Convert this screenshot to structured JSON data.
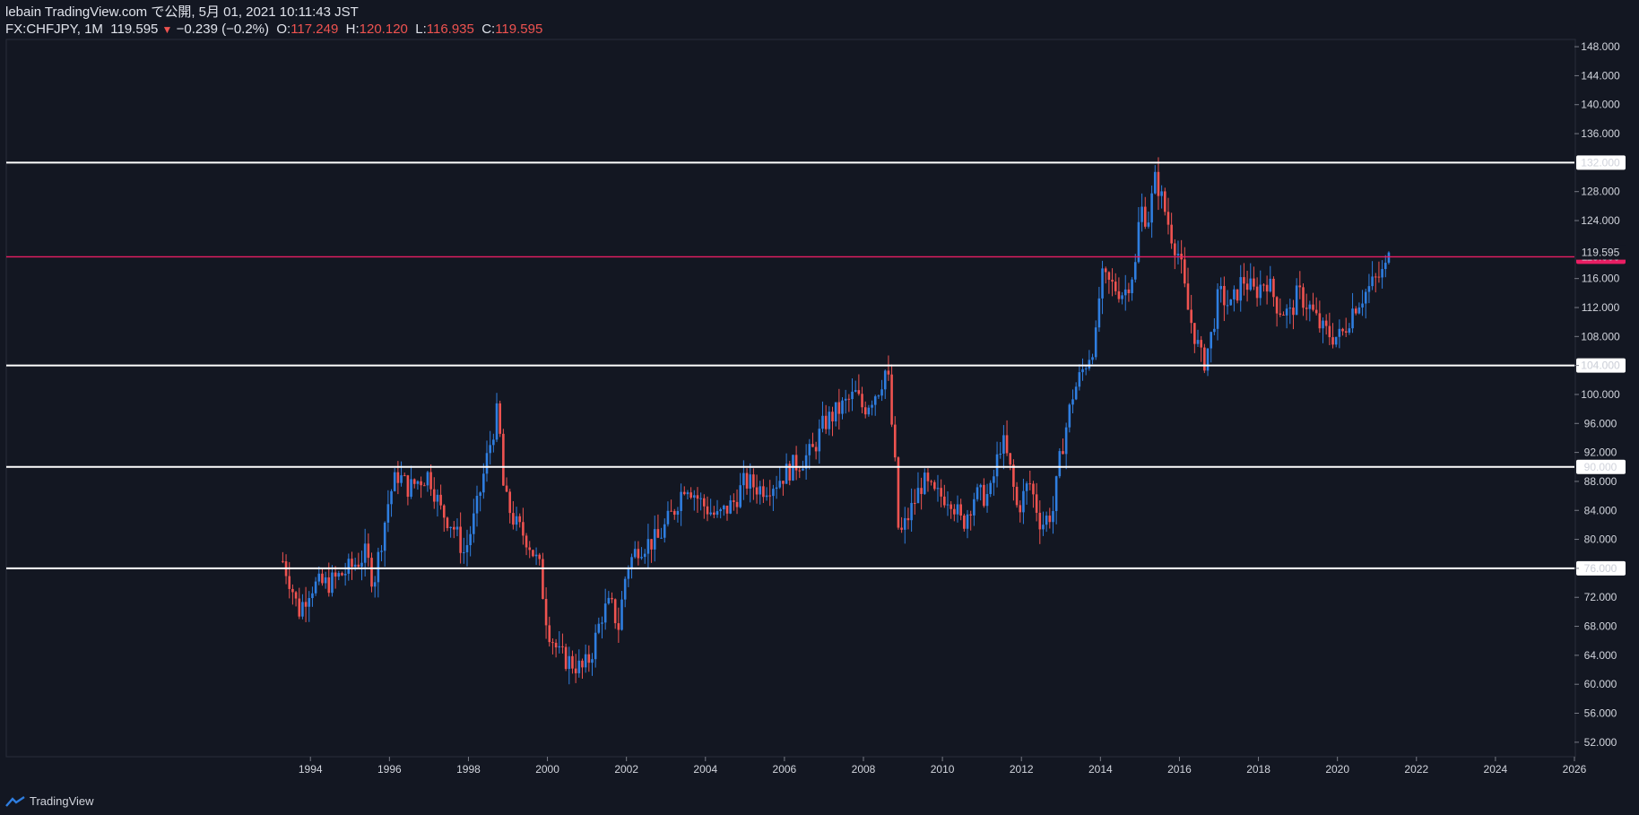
{
  "header": {
    "line1": "lebain TradingView.com で公開, 5月 01, 2021 10:11:43 JST",
    "symbol": "FX:CHFJPY, 1M",
    "last": "119.595",
    "change": "−0.239 (−0.2%)",
    "open_label": "O:",
    "open": "117.249",
    "high_label": "H:",
    "high": "120.120",
    "low_label": "L:",
    "low": "116.935",
    "close_label": "C:",
    "close": "119.595"
  },
  "footer": {
    "brand": "TradingView"
  },
  "colors": {
    "background": "#131722",
    "up": "#2f7ee0",
    "down": "#ef5350",
    "level_line": "#ffffff",
    "current_line": "#e91e63"
  },
  "chart_data": {
    "type": "candlestick",
    "interval": "1M",
    "ylim": [
      50,
      149
    ],
    "xlim": [
      1986.3,
      2026.0
    ],
    "y_ticks": [
      "52.000",
      "56.000",
      "60.000",
      "64.000",
      "68.000",
      "72.000",
      "76.000",
      "80.000",
      "84.000",
      "88.000",
      "92.000",
      "96.000",
      "100.000",
      "104.000",
      "108.000",
      "112.000",
      "116.000",
      "124.000",
      "128.000",
      "136.000",
      "140.000",
      "144.000",
      "148.000"
    ],
    "x_ticks": [
      "1994",
      "1996",
      "1998",
      "2000",
      "2002",
      "2004",
      "2006",
      "2008",
      "2010",
      "2012",
      "2014",
      "2016",
      "2018",
      "2020",
      "2022",
      "2024",
      "2026"
    ],
    "horizontal_levels": [
      {
        "value": 132.0,
        "label": "132.000"
      },
      {
        "value": 104.0,
        "label": "104.000"
      },
      {
        "value": 90.0,
        "label": "90.000"
      },
      {
        "value": 76.0,
        "label": "76.000"
      }
    ],
    "current_level": {
      "value": 119.0,
      "label": "119.000"
    },
    "last_price": {
      "value": 119.595,
      "label": "119.595"
    },
    "price_path": [
      [
        1993.3,
        77
      ],
      [
        1993.5,
        74
      ],
      [
        1993.7,
        70
      ],
      [
        1994.0,
        73.5
      ],
      [
        1994.5,
        74
      ],
      [
        1995.0,
        76
      ],
      [
        1995.4,
        78
      ],
      [
        1995.6,
        74
      ],
      [
        1995.8,
        80
      ],
      [
        1996.0,
        86
      ],
      [
        1996.2,
        89
      ],
      [
        1996.5,
        87
      ],
      [
        1996.7,
        88
      ],
      [
        1997.0,
        89
      ],
      [
        1997.3,
        84
      ],
      [
        1997.6,
        82
      ],
      [
        1997.9,
        78
      ],
      [
        1998.2,
        84
      ],
      [
        1998.5,
        92
      ],
      [
        1998.75,
        98
      ],
      [
        1998.9,
        86
      ],
      [
        1999.2,
        82
      ],
      [
        1999.5,
        80
      ],
      [
        1999.8,
        76
      ],
      [
        2000.0,
        68
      ],
      [
        2000.3,
        64
      ],
      [
        2000.6,
        63
      ],
      [
        2000.9,
        62
      ],
      [
        2001.1,
        64
      ],
      [
        2001.4,
        70
      ],
      [
        2001.6,
        71
      ],
      [
        2001.8,
        68
      ],
      [
        2002.0,
        76
      ],
      [
        2002.3,
        79
      ],
      [
        2002.8,
        80
      ],
      [
        2003.2,
        84
      ],
      [
        2003.5,
        88
      ],
      [
        2003.9,
        85
      ],
      [
        2004.3,
        83
      ],
      [
        2004.7,
        85
      ],
      [
        2005.0,
        88
      ],
      [
        2005.4,
        87
      ],
      [
        2005.8,
        88
      ],
      [
        2006.2,
        90
      ],
      [
        2006.7,
        92
      ],
      [
        2007.0,
        96
      ],
      [
        2007.4,
        98
      ],
      [
        2007.8,
        100
      ],
      [
        2008.0,
        98
      ],
      [
        2008.4,
        101
      ],
      [
        2008.6,
        104
      ],
      [
        2008.8,
        90
      ],
      [
        2008.9,
        80
      ],
      [
        2009.2,
        84
      ],
      [
        2009.5,
        88
      ],
      [
        2009.8,
        86
      ],
      [
        2010.2,
        86
      ],
      [
        2010.5,
        82
      ],
      [
        2010.8,
        86
      ],
      [
        2011.2,
        86
      ],
      [
        2011.5,
        94
      ],
      [
        2011.7,
        90
      ],
      [
        2011.9,
        84
      ],
      [
        2012.2,
        88
      ],
      [
        2012.5,
        82
      ],
      [
        2012.8,
        84
      ],
      [
        2013.0,
        92
      ],
      [
        2013.3,
        100
      ],
      [
        2013.6,
        104
      ],
      [
        2013.9,
        108
      ],
      [
        2014.0,
        116
      ],
      [
        2014.3,
        115
      ],
      [
        2014.6,
        114
      ],
      [
        2014.9,
        118
      ],
      [
        2015.0,
        126
      ],
      [
        2015.2,
        124
      ],
      [
        2015.4,
        130
      ],
      [
        2015.6,
        126
      ],
      [
        2015.8,
        122
      ],
      [
        2016.0,
        119
      ],
      [
        2016.2,
        112
      ],
      [
        2016.4,
        108
      ],
      [
        2016.6,
        104
      ],
      [
        2016.8,
        108
      ],
      [
        2017.0,
        114
      ],
      [
        2017.3,
        112
      ],
      [
        2017.6,
        116
      ],
      [
        2017.9,
        114
      ],
      [
        2018.2,
        116
      ],
      [
        2018.5,
        112
      ],
      [
        2018.8,
        111
      ],
      [
        2019.0,
        114
      ],
      [
        2019.3,
        112
      ],
      [
        2019.6,
        109
      ],
      [
        2019.9,
        108
      ],
      [
        2020.1,
        108
      ],
      [
        2020.4,
        112
      ],
      [
        2020.7,
        114
      ],
      [
        2021.0,
        116
      ],
      [
        2021.2,
        117
      ],
      [
        2021.33,
        119.595
      ]
    ]
  }
}
